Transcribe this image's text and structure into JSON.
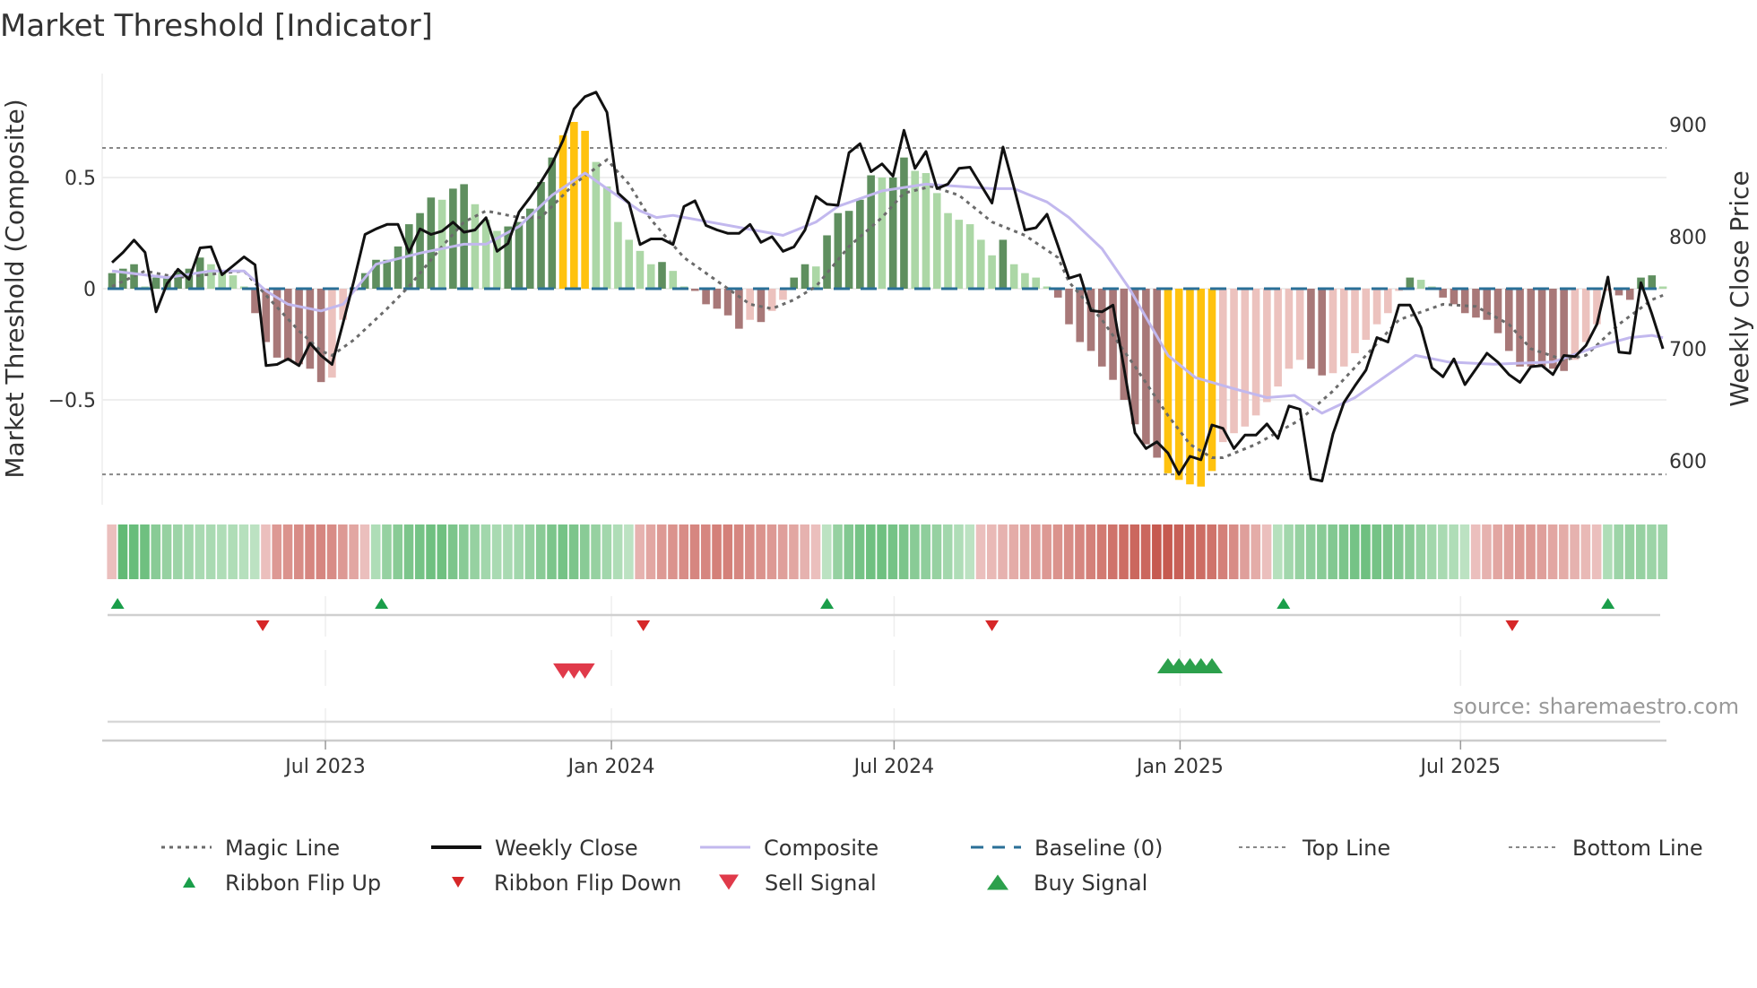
{
  "title": "Market Threshold [Indicator]",
  "chart_data": {
    "type": "bar",
    "title": "Market Threshold [Indicator]",
    "ylabel": "Market Threshold (Composite)",
    "y2label": "Weekly Close Price",
    "ylim": [
      -0.95,
      0.95
    ],
    "y2lim": [
      560,
      955
    ],
    "yticks": [
      {
        "v": 0.5,
        "label": "0.5"
      },
      {
        "v": 0,
        "label": "0"
      },
      {
        "v": -0.5,
        "label": "−0.5"
      }
    ],
    "y2ticks": [
      {
        "v": 900,
        "label": "900"
      },
      {
        "v": 800,
        "label": "800"
      },
      {
        "v": 700,
        "label": "700"
      },
      {
        "v": 600,
        "label": "600"
      }
    ],
    "x_unit": "week index",
    "xticks": [
      {
        "week": 19.4,
        "label": "Jul 2023"
      },
      {
        "week": 45.4,
        "label": "Jan 2024"
      },
      {
        "week": 71.1,
        "label": "Jul 2024"
      },
      {
        "week": 97.1,
        "label": "Jan 2025"
      },
      {
        "week": 122.6,
        "label": "Jul 2025"
      }
    ],
    "top_line": 0.633,
    "bottom_line": -0.835,
    "baseline": 0,
    "composite_bars": [
      0.07,
      0.09,
      0.11,
      0.01,
      0.05,
      0.05,
      0.08,
      0.09,
      0.14,
      0.11,
      0.08,
      0.06,
      0.01,
      -0.11,
      -0.24,
      -0.31,
      -0.32,
      -0.34,
      -0.36,
      -0.42,
      -0.4,
      -0.14,
      -0.01,
      0.07,
      0.13,
      0.13,
      0.19,
      0.29,
      0.34,
      0.41,
      0.4,
      0.45,
      0.47,
      0.38,
      0.31,
      0.26,
      0.28,
      0.3,
      0.36,
      0.48,
      0.59,
      0.69,
      0.75,
      0.71,
      0.57,
      0.46,
      0.3,
      0.22,
      0.17,
      0.11,
      0.12,
      0.08,
      0.01,
      -0.01,
      -0.07,
      -0.09,
      -0.12,
      -0.18,
      -0.14,
      -0.15,
      -0.1,
      -0.05,
      0.05,
      0.11,
      0.1,
      0.24,
      0.34,
      0.35,
      0.4,
      0.51,
      0.5,
      0.5,
      0.59,
      0.53,
      0.52,
      0.43,
      0.34,
      0.31,
      0.29,
      0.22,
      0.15,
      0.22,
      0.11,
      0.07,
      0.05,
      0.01,
      -0.04,
      -0.16,
      -0.24,
      -0.28,
      -0.35,
      -0.41,
      -0.5,
      -0.61,
      -0.7,
      -0.76,
      -0.83,
      -0.86,
      -0.88,
      -0.89,
      -0.82,
      -0.69,
      -0.65,
      -0.62,
      -0.57,
      -0.51,
      -0.44,
      -0.36,
      -0.32,
      -0.36,
      -0.39,
      -0.38,
      -0.35,
      -0.29,
      -0.23,
      -0.16,
      -0.11,
      -0.01,
      0.05,
      0.04,
      0.01,
      -0.04,
      -0.07,
      -0.11,
      -0.13,
      -0.14,
      -0.2,
      -0.28,
      -0.35,
      -0.35,
      -0.35,
      -0.36,
      -0.37,
      -0.32,
      -0.24,
      -0.16,
      -0.01,
      -0.03,
      -0.05,
      0.05,
      0.06,
      0.01
    ],
    "weekly_close": [
      777,
      786,
      797,
      786,
      733,
      758,
      771,
      762,
      790,
      791,
      766,
      774,
      782,
      775,
      685,
      686,
      691,
      685,
      705,
      694,
      686,
      723,
      761,
      802,
      807,
      811,
      811,
      786,
      807,
      802,
      805,
      813,
      804,
      806,
      817,
      787,
      794,
      822,
      835,
      849,
      865,
      886,
      914,
      925,
      929,
      911,
      839,
      830,
      793,
      798,
      798,
      793,
      827,
      832,
      810,
      806,
      803,
      803,
      811,
      795,
      800,
      787,
      791,
      806,
      836,
      829,
      828,
      875,
      883,
      858,
      865,
      854,
      895,
      861,
      876,
      843,
      847,
      861,
      862,
      846,
      830,
      880,
      844,
      806,
      808,
      820,
      792,
      763,
      766,
      734,
      733,
      739,
      683,
      625,
      611,
      617,
      607,
      588,
      604,
      601,
      632,
      629,
      611,
      623,
      623,
      633,
      620,
      649,
      646,
      584,
      582,
      624,
      652,
      667,
      681,
      710,
      706,
      739,
      739,
      719,
      683,
      675,
      691,
      668,
      682,
      696,
      688,
      677,
      670,
      684,
      685,
      677,
      694,
      693,
      703,
      722,
      764,
      697,
      696,
      759,
      731,
      700
    ],
    "composite_line": [
      [
        0,
        0.08
      ],
      [
        5,
        0.05
      ],
      [
        9,
        0.08
      ],
      [
        12,
        0.08
      ],
      [
        14,
        -0.01
      ],
      [
        16,
        -0.07
      ],
      [
        19,
        -0.1
      ],
      [
        21,
        -0.07
      ],
      [
        24,
        0.11
      ],
      [
        28,
        0.16
      ],
      [
        32,
        0.2
      ],
      [
        34,
        0.2
      ],
      [
        37,
        0.28
      ],
      [
        40,
        0.42
      ],
      [
        43,
        0.52
      ],
      [
        45,
        0.45
      ],
      [
        48,
        0.35
      ],
      [
        49.5,
        0.32
      ],
      [
        51,
        0.33
      ],
      [
        61,
        0.24
      ],
      [
        64,
        0.3
      ],
      [
        66,
        0.37
      ],
      [
        70,
        0.44
      ],
      [
        74,
        0.47
      ],
      [
        80,
        0.45
      ],
      [
        82,
        0.45
      ],
      [
        85,
        0.39
      ],
      [
        87,
        0.32
      ],
      [
        90,
        0.18
      ],
      [
        92.5,
        0
      ],
      [
        96,
        -0.3
      ],
      [
        98.5,
        -0.4
      ],
      [
        102,
        -0.45
      ],
      [
        105,
        -0.49
      ],
      [
        107.5,
        -0.48
      ],
      [
        110,
        -0.56
      ],
      [
        113,
        -0.49
      ],
      [
        118.5,
        -0.3
      ],
      [
        121.5,
        -0.33
      ],
      [
        125.6,
        -0.34
      ],
      [
        131,
        -0.33
      ],
      [
        135,
        -0.26
      ],
      [
        138,
        -0.22
      ],
      [
        140,
        -0.21
      ],
      [
        141,
        -0.22
      ]
    ],
    "magic_line": [
      [
        0,
        0.01
      ],
      [
        3,
        0.08
      ],
      [
        6,
        0.05
      ],
      [
        12,
        0.08
      ],
      [
        14,
        -0.03
      ],
      [
        17,
        -0.19
      ],
      [
        19,
        -0.28
      ],
      [
        20,
        -0.3
      ],
      [
        22,
        -0.23
      ],
      [
        25,
        -0.09
      ],
      [
        27,
        0.01
      ],
      [
        30,
        0.19
      ],
      [
        32,
        0.3
      ],
      [
        34,
        0.35
      ],
      [
        37,
        0.32
      ],
      [
        39,
        0.32
      ],
      [
        42,
        0.47
      ],
      [
        45,
        0.58
      ],
      [
        47,
        0.47
      ],
      [
        49,
        0.31
      ],
      [
        52,
        0.14
      ],
      [
        56,
        0
      ],
      [
        58,
        -0.07
      ],
      [
        60,
        -0.09
      ],
      [
        62,
        -0.05
      ],
      [
        64,
        0.01
      ],
      [
        67,
        0.19
      ],
      [
        70,
        0.32
      ],
      [
        72,
        0.43
      ],
      [
        74.5,
        0.46
      ],
      [
        77,
        0.42
      ],
      [
        80,
        0.3
      ],
      [
        83,
        0.24
      ],
      [
        86,
        0.14
      ],
      [
        87,
        0.03
      ],
      [
        90,
        -0.14
      ],
      [
        93,
        -0.35
      ],
      [
        96,
        -0.57
      ],
      [
        98,
        -0.7
      ],
      [
        100,
        -0.76
      ],
      [
        101,
        -0.76
      ],
      [
        104,
        -0.7
      ],
      [
        108,
        -0.59
      ],
      [
        111,
        -0.46
      ],
      [
        114,
        -0.3
      ],
      [
        117,
        -0.14
      ],
      [
        121,
        -0.07
      ],
      [
        124,
        -0.08
      ],
      [
        127,
        -0.16
      ],
      [
        129,
        -0.27
      ],
      [
        132,
        -0.32
      ],
      [
        134,
        -0.3
      ],
      [
        137,
        -0.16
      ],
      [
        140,
        -0.05
      ],
      [
        141,
        -0.03
      ]
    ],
    "ribbon": [
      -0.2,
      0.9,
      0.85,
      0.8,
      0.6,
      0.5,
      0.45,
      0.4,
      0.35,
      0.35,
      0.3,
      0.3,
      0.25,
      0.2,
      -0.2,
      -0.5,
      -0.55,
      -0.6,
      -0.65,
      -0.65,
      -0.6,
      -0.5,
      -0.4,
      -0.2,
      0.3,
      0.5,
      0.6,
      0.7,
      0.75,
      0.8,
      0.8,
      0.7,
      0.6,
      0.5,
      0.4,
      0.35,
      0.35,
      0.4,
      0.5,
      0.6,
      0.7,
      0.75,
      0.7,
      0.6,
      0.5,
      0.4,
      0.3,
      0.2,
      -0.3,
      -0.4,
      -0.5,
      -0.55,
      -0.6,
      -0.65,
      -0.65,
      -0.7,
      -0.7,
      -0.65,
      -0.6,
      -0.55,
      -0.5,
      -0.45,
      -0.4,
      -0.3,
      -0.2,
      0.2,
      0.5,
      0.65,
      0.75,
      0.8,
      0.8,
      0.75,
      0.7,
      0.6,
      0.55,
      0.5,
      0.4,
      0.3,
      0.2,
      -0.2,
      -0.25,
      -0.3,
      -0.35,
      -0.4,
      -0.45,
      -0.5,
      -0.55,
      -0.6,
      -0.65,
      -0.7,
      -0.75,
      -0.8,
      -0.85,
      -0.9,
      -0.9,
      -1,
      -1,
      -0.95,
      -0.9,
      -0.85,
      -0.8,
      -0.7,
      -0.6,
      -0.45,
      -0.35,
      -0.2,
      0.25,
      0.4,
      0.5,
      0.55,
      0.6,
      0.65,
      0.7,
      0.75,
      0.8,
      0.75,
      0.7,
      0.65,
      0.6,
      0.5,
      0.4,
      0.35,
      0.3,
      0.2,
      -0.2,
      -0.3,
      -0.4,
      -0.45,
      -0.5,
      -0.5,
      -0.45,
      -0.4,
      -0.35,
      -0.3,
      -0.25,
      -0.2,
      0.3,
      0.45,
      0.5,
      0.5,
      0.45,
      0.45
    ],
    "ribbon_flip_up": [
      0.5,
      24.5,
      65,
      106.5,
      136
    ],
    "ribbon_flip_down": [
      13.7,
      48.3,
      80,
      127.3
    ],
    "sell_signals": [
      41,
      42,
      43
    ],
    "buy_signals": [
      96,
      97,
      98,
      99,
      100
    ],
    "legend": {
      "placement": "bottom",
      "items": [
        {
          "key": "magic",
          "label": "Magic Line"
        },
        {
          "key": "close",
          "label": "Weekly Close"
        },
        {
          "key": "composite",
          "label": "Composite"
        },
        {
          "key": "baseline",
          "label": "Baseline (0)"
        },
        {
          "key": "top",
          "label": "Top Line"
        },
        {
          "key": "bottom",
          "label": "Bottom Line"
        },
        {
          "key": "flipup",
          "label": "Ribbon Flip Up"
        },
        {
          "key": "flipdown",
          "label": "Ribbon Flip Down"
        },
        {
          "key": "sell",
          "label": "Sell Signal"
        },
        {
          "key": "buy",
          "label": "Buy Signal"
        }
      ]
    },
    "colors": {
      "bar_up_strong": "#5f8f5f",
      "bar_up_weak": "#acd7a6",
      "bar_down_strong": "#a87878",
      "bar_down_weak": "#ecc2be",
      "bar_extreme": "#ffc20e",
      "close": "#111111",
      "composite": "#c2b8ee",
      "magic": "#6b6b6b",
      "baseline": "#2a6f97",
      "threshold": "#888888",
      "flip_up": "#1a9e4a",
      "flip_down": "#d62728",
      "sell": "#e03a4a",
      "buy": "#2ca04c"
    }
  },
  "source": "source: sharemaestro.com"
}
